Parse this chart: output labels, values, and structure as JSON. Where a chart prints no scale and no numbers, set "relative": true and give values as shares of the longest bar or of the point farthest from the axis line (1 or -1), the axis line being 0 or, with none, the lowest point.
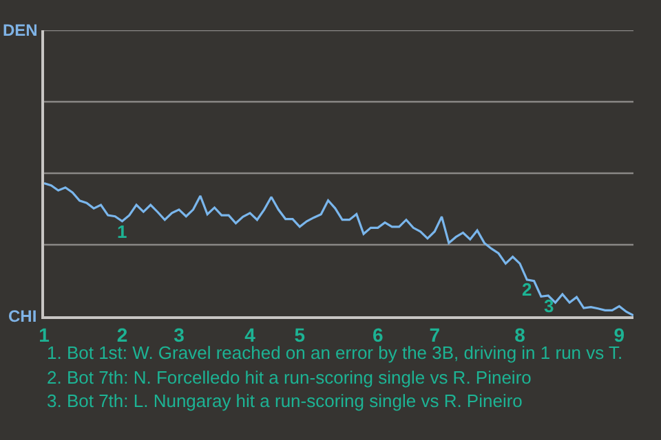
{
  "chart_data": {
    "type": "line",
    "relative": true,
    "categories": [
      "1",
      null,
      null,
      null,
      null,
      null,
      null,
      null,
      null,
      null,
      null,
      "2",
      null,
      null,
      null,
      null,
      null,
      null,
      null,
      "3",
      null,
      null,
      null,
      null,
      null,
      null,
      null,
      null,
      null,
      "4",
      null,
      null,
      null,
      null,
      null,
      null,
      "5",
      null,
      null,
      null,
      null,
      null,
      null,
      null,
      null,
      null,
      null,
      "6",
      null,
      null,
      null,
      null,
      null,
      null,
      null,
      "7",
      null,
      null,
      null,
      null,
      null,
      null,
      null,
      null,
      null,
      null,
      null,
      "8",
      null,
      null,
      null,
      null,
      null,
      null,
      null,
      null,
      null,
      null,
      null,
      null,
      null,
      "9",
      null,
      null
    ],
    "series": [
      {
        "color": "#7ab6ec",
        "values": [
          1,
          0.983,
          0.946,
          0.968,
          0.931,
          0.869,
          0.852,
          0.811,
          0.837,
          0.759,
          0.751,
          0.714,
          0.759,
          0.837,
          0.785,
          0.837,
          0.783,
          0.725,
          0.776,
          0.802,
          0.751,
          0.802,
          0.905,
          0.766,
          0.817,
          0.759,
          0.759,
          0.699,
          0.748,
          0.776,
          0.725,
          0.802,
          0.897,
          0.802,
          0.731,
          0.731,
          0.673,
          0.714,
          0.742,
          0.766,
          0.871,
          0.811,
          0.725,
          0.725,
          0.768,
          0.619,
          0.665,
          0.665,
          0.705,
          0.673,
          0.673,
          0.725,
          0.665,
          0.637,
          0.585,
          0.637,
          0.748,
          0.551,
          0.596,
          0.628,
          0.578,
          0.645,
          0.551,
          0.508,
          0.473,
          0.396,
          0.447,
          0.396,
          0.275,
          0.265,
          0.148,
          0.155,
          0.103,
          0.166,
          0.103,
          0.144,
          0.062,
          0.069,
          0.058,
          0.045,
          0.045,
          0.075,
          0.034,
          0.006
        ]
      }
    ],
    "ref_lines": [
      {
        "axis": "y",
        "value": 0.5375,
        "color": "#8a8886"
      },
      {
        "axis": "y",
        "value": 1.075,
        "color": "#8a8886"
      },
      {
        "axis": "y",
        "value": 1.6125,
        "color": "#8a8886"
      },
      {
        "axis": "y",
        "value": 2.15,
        "color": "#8a8886"
      }
    ],
    "marker": "none",
    "line_style": "solid",
    "annotations": [
      "DEN",
      "CHI",
      {
        "text": "1",
        "y": 0.714
      },
      {
        "text": "2",
        "y": 0.275
      },
      {
        "text": "3",
        "y": 0.155
      },
      "1. Bot 1st: W. Gravel reached on an error by the 3B, driving in 1 run vs T.",
      "2. Bot 7th: N. Forcelledo hit a run-scoring single vs R. Pineiro",
      "3. Bot 7th: L. Nungaray hit a run-scoring single vs R. Pineiro"
    ]
  }
}
